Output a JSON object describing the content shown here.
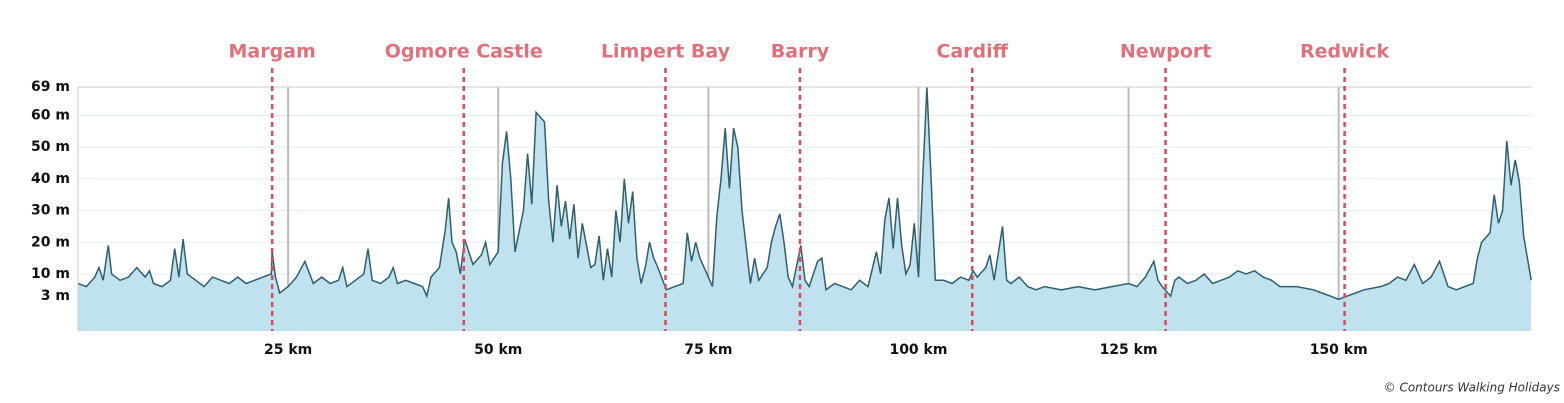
{
  "chart_data": {
    "type": "area",
    "copyright": "© Contours Walking Holidays",
    "line_color": "#2f5f6e",
    "fill_color": "#bfe2ee",
    "marker_color": "#d94a5a",
    "grid": true,
    "xlim": [
      0,
      173
    ],
    "ylim": [
      -8,
      69
    ],
    "xticks": [
      {
        "value": 25,
        "label": "25 km"
      },
      {
        "value": 50,
        "label": "50 km"
      },
      {
        "value": 75,
        "label": "75 km"
      },
      {
        "value": 100,
        "label": "100 km"
      },
      {
        "value": 125,
        "label": "125 km"
      },
      {
        "value": 150,
        "label": "150 km"
      }
    ],
    "yticks": [
      {
        "value": 3,
        "label": "3 m"
      },
      {
        "value": 10,
        "label": "10 m"
      },
      {
        "value": 20,
        "label": "20 m"
      },
      {
        "value": 30,
        "label": "30 m"
      },
      {
        "value": 40,
        "label": "40 m"
      },
      {
        "value": 50,
        "label": "50 m"
      },
      {
        "value": 60,
        "label": "60 m"
      },
      {
        "value": 69,
        "label": "69 m"
      }
    ],
    "markers": [
      {
        "label": "Margam",
        "x": 23.1
      },
      {
        "label": "Ogmore Castle",
        "x": 45.9
      },
      {
        "label": "Limpert Bay",
        "x": 69.9
      },
      {
        "label": "Barry",
        "x": 85.9
      },
      {
        "label": "Cardiff",
        "x": 106.4
      },
      {
        "label": "Newport",
        "x": 129.4
      },
      {
        "label": "Redwick",
        "x": 150.7
      }
    ],
    "x": [
      0,
      1,
      2,
      2.5,
      3,
      3.6,
      4,
      5,
      6,
      7,
      8,
      8.5,
      9,
      10,
      11,
      11.5,
      12,
      12.5,
      13,
      14,
      15,
      16,
      17,
      18,
      19,
      20,
      21,
      22,
      23,
      23.1,
      23.5,
      24,
      25,
      26,
      27,
      28,
      29,
      30,
      31,
      31.5,
      32,
      33,
      34,
      34.5,
      35,
      36,
      37,
      37.5,
      38,
      39,
      40,
      41,
      41.5,
      42,
      43,
      43.7,
      44.1,
      44.5,
      45,
      45.5,
      46,
      46.5,
      47,
      48,
      48.5,
      49,
      50,
      50.5,
      51,
      51.5,
      52,
      53,
      53.5,
      54,
      54.5,
      55.5,
      56,
      56.5,
      57,
      57.5,
      58,
      58.5,
      59,
      59.5,
      60,
      61,
      61.5,
      62,
      62.5,
      63,
      63.5,
      64,
      64.5,
      65,
      65.5,
      66,
      66.5,
      67,
      67.5,
      68,
      68.5,
      69,
      70,
      71,
      72,
      72.5,
      73,
      73.5,
      74,
      75,
      75.5,
      76,
      76.5,
      77,
      77.5,
      78,
      78.5,
      79,
      80,
      80.5,
      81,
      82,
      82.5,
      83,
      83.5,
      84,
      84.5,
      85,
      86,
      86.5,
      87,
      88,
      88.5,
      89,
      90,
      91,
      92,
      93,
      94,
      95,
      95.5,
      96,
      96.5,
      97,
      97.5,
      98,
      98.5,
      99,
      99.5,
      100,
      100.5,
      101,
      101.5,
      102,
      103,
      104,
      105,
      106,
      106.5,
      107,
      108,
      108.5,
      109,
      110,
      110.5,
      111,
      112,
      113,
      114,
      115,
      117,
      119,
      121,
      123,
      125,
      126,
      127,
      128,
      128.5,
      129,
      130,
      130.5,
      131,
      132,
      133,
      134,
      135,
      136,
      137,
      138,
      139,
      140,
      141,
      142,
      143,
      145,
      147,
      148,
      149,
      150,
      151,
      152,
      153,
      155,
      156,
      157,
      158,
      159,
      160,
      161,
      162,
      163,
      164,
      165,
      166,
      166.5,
      167,
      168,
      168.5,
      169,
      169.5,
      170,
      170.5,
      171,
      171.5,
      172,
      172.9
    ],
    "values": [
      7,
      6,
      9,
      12,
      8,
      19,
      10,
      8,
      9,
      12,
      9,
      11,
      7,
      6,
      8,
      18,
      9,
      21,
      10,
      8,
      6,
      9,
      8,
      7,
      9,
      7,
      8,
      9,
      10,
      17,
      9,
      4,
      6,
      9,
      14,
      7,
      9,
      7,
      8,
      12,
      6,
      8,
      10,
      18,
      8,
      7,
      9,
      12,
      7,
      8,
      7,
      6,
      3,
      9,
      12,
      24,
      34,
      20,
      17,
      10,
      21,
      17,
      13,
      16,
      20,
      13,
      17,
      45,
      55,
      40,
      17,
      30,
      48,
      32,
      61,
      58,
      33,
      20,
      38,
      25,
      33,
      21,
      32,
      15,
      26,
      12,
      13,
      22,
      8,
      18,
      9,
      30,
      20,
      40,
      26,
      36,
      15,
      7,
      12,
      20,
      15,
      12,
      5,
      6,
      7,
      23,
      14,
      20,
      15,
      9,
      6,
      28,
      40,
      56,
      37,
      56,
      50,
      30,
      7,
      15,
      8,
      12,
      20,
      25,
      29,
      20,
      9,
      6,
      19,
      8,
      6,
      14,
      15,
      5,
      7,
      6,
      5,
      8,
      6,
      17,
      10,
      27,
      34,
      18,
      34,
      19,
      10,
      13,
      26,
      9,
      40,
      69,
      40,
      8,
      8,
      7,
      9,
      8,
      11,
      9,
      12,
      16,
      8,
      25,
      8,
      7,
      9,
      6,
      5,
      6,
      5,
      6,
      5,
      6,
      7,
      6,
      9,
      14,
      8,
      6,
      3,
      8,
      9,
      7,
      8,
      10,
      7,
      8,
      9,
      11,
      10,
      11,
      9,
      8,
      6,
      6,
      5,
      4,
      3,
      2,
      3,
      4,
      5,
      6,
      7,
      9,
      8,
      13,
      7,
      9,
      14,
      6,
      5,
      6,
      7,
      15,
      20,
      23,
      35,
      26,
      30,
      52,
      38,
      46,
      39,
      22,
      8
    ]
  }
}
